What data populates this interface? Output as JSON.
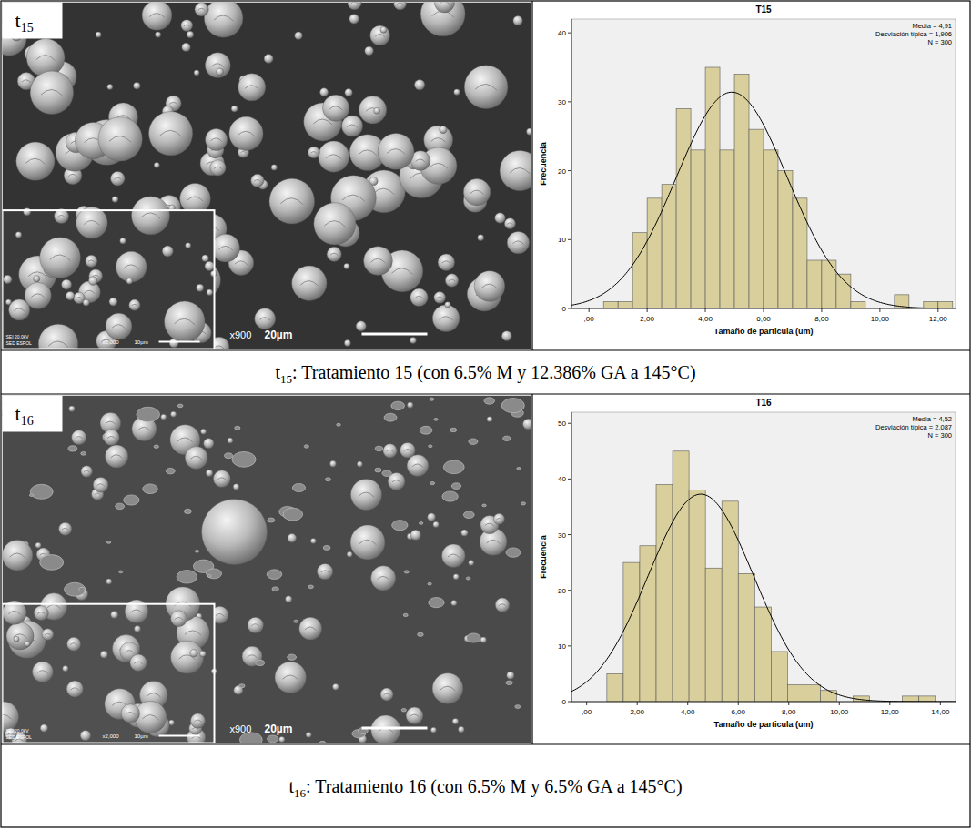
{
  "chart_data": [
    {
      "type": "histogram",
      "title": "T15",
      "x_label": "Tamaño de particula (um)",
      "y_label": "Frecuencia",
      "bins": [
        0.5,
        1.0,
        1.5,
        2.0,
        2.5,
        3.0,
        3.5,
        4.0,
        4.5,
        5.0,
        5.5,
        6.0,
        6.5,
        7.0,
        7.5,
        8.0,
        8.5,
        9.0,
        9.5,
        10.0,
        10.5,
        11.0,
        11.5,
        12.0,
        12.5
      ],
      "values": [
        1,
        1,
        11,
        16,
        18,
        29,
        23,
        35,
        23,
        34,
        26,
        23,
        20,
        16,
        7,
        7,
        5,
        1,
        0,
        0,
        2,
        0,
        1,
        1
      ],
      "color": "#d8cf9c",
      "xlim": [
        -0.6,
        12.6
      ],
      "xticks": [
        {
          "value": 0,
          "label": ",00"
        },
        {
          "value": 2,
          "label": "2,00"
        },
        {
          "value": 4,
          "label": "4,00"
        },
        {
          "value": 6,
          "label": "6,00"
        },
        {
          "value": 8,
          "label": "8,00"
        },
        {
          "value": 10,
          "label": "10,00"
        },
        {
          "value": 12,
          "label": "12,00"
        }
      ],
      "ylim": [
        0,
        42
      ],
      "yticks": [
        0,
        10,
        20,
        30,
        40
      ],
      "annotations": [
        "Media = 4,91",
        "Desviación típica = 1,906",
        "N = 300"
      ],
      "normal_curve": {
        "mean": 4.91,
        "sd": 1.906,
        "n": 300
      }
    },
    {
      "type": "histogram",
      "title": "T16",
      "x_label": "Tamaño de particula (um)",
      "y_label": "Frecuencia",
      "bins": [
        0.8,
        1.45,
        2.1,
        2.75,
        3.4,
        4.05,
        4.7,
        5.35,
        6.0,
        6.65,
        7.3,
        7.95,
        8.6,
        9.25,
        9.9,
        10.55,
        11.2,
        11.85,
        12.5,
        13.15,
        13.8
      ],
      "values": [
        5,
        25,
        28,
        39,
        45,
        38,
        24,
        36,
        23,
        17,
        9,
        3,
        3,
        2,
        0,
        1,
        0,
        0,
        1,
        1
      ],
      "color": "#d8cf9c",
      "xlim": [
        -0.6,
        14.6
      ],
      "xticks": [
        {
          "value": 0,
          "label": ",00"
        },
        {
          "value": 2,
          "label": "2,00"
        },
        {
          "value": 4,
          "label": "4,00"
        },
        {
          "value": 6,
          "label": "6,00"
        },
        {
          "value": 8,
          "label": "8,00"
        },
        {
          "value": 10,
          "label": "10,00"
        },
        {
          "value": 12,
          "label": "12,00"
        },
        {
          "value": 14,
          "label": "14,00"
        }
      ],
      "ylim": [
        0,
        52
      ],
      "yticks": [
        0,
        10,
        20,
        30,
        40,
        50
      ],
      "annotations": [
        "Media = 4,52",
        "Desviación típica = 2,087",
        "N = 300"
      ],
      "normal_curve": {
        "mean": 4.52,
        "sd": 2.087,
        "n": 300
      }
    }
  ],
  "panels": [
    {
      "label_main": "t",
      "label_sub": "15",
      "image_texts": {
        "magnification": "x900",
        "scale": "20µm",
        "inset_magnification": "x2,000",
        "inset_scale": "10µm",
        "instrument": "SEI 20.0kV",
        "lab": "SED ESPOL"
      },
      "caption": {
        "main": "t",
        "sub": "15",
        "text": ": Tratamiento 15 (con 6.5% M y 12.386% GA a 145°C)"
      }
    },
    {
      "label_main": "t",
      "label_sub": "16",
      "image_texts": {
        "magnification": "x900",
        "scale": "20µm",
        "inset_magnification": "x2,000",
        "inset_scale": "10µm",
        "instrument": "SEI 20.0kV",
        "lab": "SED ESPOL"
      },
      "caption": {
        "main": "t",
        "sub": "16",
        "text": ": Tratamiento 16 (con 6.5% M y 6.5% GA a 145°C)"
      }
    }
  ]
}
